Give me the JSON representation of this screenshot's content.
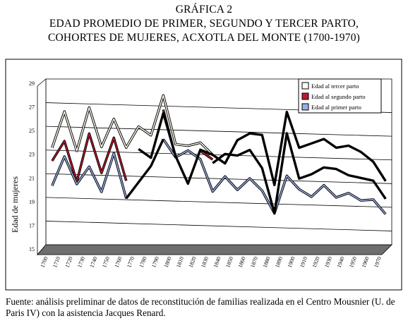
{
  "header": {
    "line1": "GRÁFICA 2",
    "line2": "EDAD PROMEDIO DE PRIMER, SEGUNDO Y TERCER PARTO,",
    "line3": "COHORTES DE MUJERES, ACXOTLA DEL MONTE (1700-1970)"
  },
  "footer": {
    "source": "Fuente: análisis preliminar de datos de reconstitución de familias realizada en el Centro Mousnier (U. de Paris IV) con la asistencia Jacques Renard."
  },
  "chart_data": {
    "type": "line",
    "title": "GRÁFICA 2 EDAD PROMEDIO DE PRIMER, SEGUNDO Y TERCER PARTO, COHORTES DE MUJERES, ACXOTLA DEL MONTE (1700-1970)",
    "xlabel": "",
    "ylabel": "Edad de mujeres",
    "ylim": [
      15,
      29
    ],
    "yticks": [
      15,
      17,
      19,
      21,
      23,
      25,
      27,
      29
    ],
    "grid": true,
    "legend_position": "top-right",
    "categories": [
      "1700",
      "1710",
      "1720",
      "1730",
      "1740",
      "1750",
      "1760",
      "1770",
      "1780",
      "1790",
      "1800",
      "1810",
      "1820",
      "1830",
      "1840",
      "1850",
      "1860",
      "1870",
      "1880",
      "1890",
      "1900",
      "1910",
      "1920",
      "1930",
      "1940",
      "1950",
      "1960",
      "1970"
    ],
    "series": [
      {
        "name": "Edad al tercer parto",
        "color": "#fffff0",
        "values": [
          23.2,
          26.3,
          23.0,
          26.7,
          23.4,
          25.8,
          23.4,
          25.2,
          24.5,
          27.9,
          23.8,
          23.7,
          24.0,
          23.0,
          null,
          null,
          null,
          null,
          null,
          null,
          null,
          null,
          null,
          null,
          null,
          null,
          null,
          null
        ]
      },
      {
        "name": "Edad al segundo parto",
        "color": "#c01830",
        "values": [
          22.1,
          23.8,
          20.4,
          24.5,
          21.2,
          24.2,
          20.6,
          null,
          null,
          26.7,
          22.7,
          null,
          23.3,
          22.6,
          null,
          null,
          null,
          null,
          null,
          null,
          null,
          null,
          null,
          null,
          null,
          null,
          null,
          null
        ]
      },
      {
        "name": "Edad al primer parto",
        "color": "#9ab0e8",
        "values": [
          20.0,
          22.5,
          20.2,
          21.7,
          19.6,
          22.9,
          19.1,
          null,
          null,
          24.2,
          22.7,
          23.3,
          22.6,
          19.9,
          21.2,
          20.1,
          21.1,
          20.1,
          18.2,
          21.4,
          20.3,
          19.7,
          20.7,
          19.7,
          20.1,
          19.5,
          19.6,
          18.4
        ]
      },
      {
        "name": "",
        "color": "#000000",
        "values": [
          null,
          null,
          null,
          null,
          null,
          null,
          null,
          23.3,
          22.6,
          26.4,
          22.8,
          20.5,
          23.4,
          23.0,
          22.3,
          24.3,
          24.9,
          24.8,
          20.6,
          26.8,
          23.8,
          24.2,
          24.6,
          23.9,
          24.1,
          23.6,
          22.8,
          21.2
        ]
      },
      {
        "name": "",
        "color": "#000000",
        "values": [
          null,
          null,
          null,
          null,
          null,
          null,
          null,
          null,
          null,
          null,
          null,
          null,
          null,
          22.3,
          23.1,
          23.0,
          23.5,
          22.0,
          18.2,
          25.0,
          21.2,
          21.6,
          22.2,
          22.1,
          21.6,
          21.4,
          21.2,
          19.7
        ]
      },
      {
        "name": "",
        "color": "#000000",
        "values": [
          null,
          null,
          null,
          null,
          null,
          null,
          19.1,
          20.5,
          21.9,
          24.2,
          null,
          null,
          null,
          null,
          null,
          null,
          null,
          null,
          null,
          null,
          null,
          null,
          null,
          null,
          null,
          null,
          null,
          null
        ]
      }
    ]
  }
}
